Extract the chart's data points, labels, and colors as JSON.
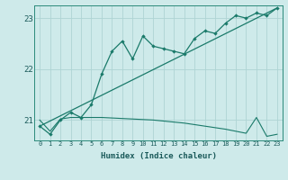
{
  "xlabel": "Humidex (Indice chaleur)",
  "bg_color": "#ceeaea",
  "line_color": "#1a7a6a",
  "grid_color": "#aed4d4",
  "xlim": [
    -0.5,
    23.5
  ],
  "ylim": [
    20.6,
    23.25
  ],
  "yticks": [
    21,
    22,
    23
  ],
  "xticks": [
    0,
    1,
    2,
    3,
    4,
    5,
    6,
    7,
    8,
    9,
    10,
    11,
    12,
    13,
    14,
    15,
    16,
    17,
    18,
    19,
    20,
    21,
    22,
    23
  ],
  "series1_x": [
    0,
    1,
    2,
    3,
    4,
    5,
    6,
    7,
    8,
    9,
    10,
    11,
    12,
    13,
    14,
    15,
    16,
    17,
    18,
    19,
    20,
    21,
    22,
    23
  ],
  "series1_y": [
    20.88,
    20.72,
    21.0,
    21.15,
    21.05,
    21.3,
    21.9,
    22.35,
    22.55,
    22.2,
    22.65,
    22.45,
    22.4,
    22.35,
    22.3,
    22.6,
    22.75,
    22.7,
    22.9,
    23.05,
    23.0,
    23.1,
    23.05,
    23.2
  ],
  "series2_x": [
    0,
    23
  ],
  "series2_y": [
    20.88,
    23.2
  ],
  "series3_x": [
    0,
    1,
    2,
    3,
    4,
    5,
    6,
    7,
    8,
    9,
    10,
    11,
    12,
    13,
    14,
    15,
    16,
    17,
    18,
    19,
    20,
    21,
    22,
    23
  ],
  "series3_y": [
    21.0,
    20.78,
    21.02,
    21.05,
    21.05,
    21.05,
    21.05,
    21.04,
    21.03,
    21.02,
    21.01,
    21.0,
    20.98,
    20.96,
    20.94,
    20.91,
    20.88,
    20.85,
    20.82,
    20.78,
    20.74,
    21.05,
    20.68,
    20.72
  ]
}
